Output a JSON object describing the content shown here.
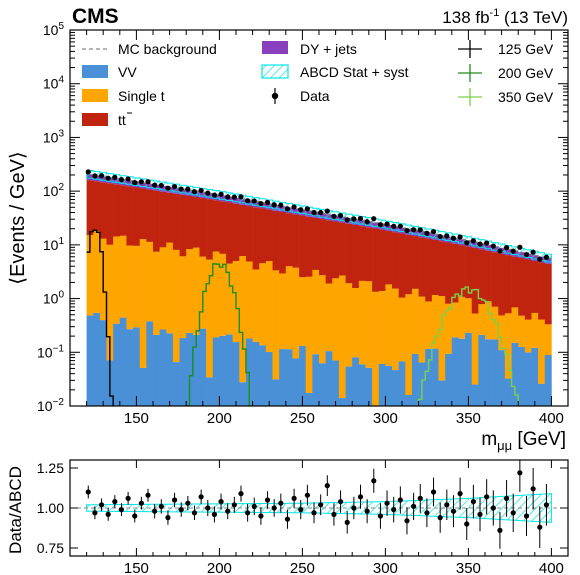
{
  "header": {
    "experiment": "CMS",
    "lumi_prefix": "138 fb",
    "lumi_exp": "-1",
    "lumi_suffix": " (13 TeV)"
  },
  "legend": {
    "mc_background": "MC background",
    "vv": "VV",
    "single_t": "Single t",
    "ttbar": "tt",
    "dy_jets": "DY + jets",
    "abcd": "ABCD Stat + syst",
    "data": "Data",
    "sig125": "125 GeV",
    "sig200": "200 GeV",
    "sig350": "350 GeV"
  },
  "colors": {
    "vv": "#4a90d6",
    "single_t": "#ffa500",
    "ttbar": "#c1240e",
    "dy_jets": "#8a3fbf",
    "abcd": "#00e5e5",
    "sig125": "#000000",
    "sig200": "#1e8c1e",
    "sig350": "#7ccf4a"
  },
  "chart_data": [
    {
      "type": "bar",
      "stacked": true,
      "log_y": true,
      "xlabel": "m",
      "xlabel_sub": "μμ",
      "xlabel_unit": " [GeV]",
      "ylabel": "⟨Events / GeV⟩",
      "xlim": [
        110,
        410
      ],
      "ylim": [
        0.01,
        100000
      ],
      "x_ticks": [
        "150",
        "200",
        "250",
        "300",
        "350",
        "400"
      ],
      "x_tick_values": [
        150,
        200,
        250,
        300,
        350,
        400
      ],
      "y_ticks": [
        {
          "base": "10",
          "exp": "−2",
          "value": 0.01
        },
        {
          "base": "10",
          "exp": "−1",
          "value": 0.1
        },
        {
          "base": "10",
          "exp": "0",
          "value": 1
        },
        {
          "base": "10",
          "exp": "1",
          "value": 10
        },
        {
          "base": "10",
          "exp": "2",
          "value": 100
        },
        {
          "base": "10",
          "exp": "3",
          "value": 1000
        },
        {
          "base": "10",
          "exp": "4",
          "value": 10000
        },
        {
          "base": "10",
          "exp": "5",
          "value": 100000
        }
      ],
      "bin_range": [
        120,
        400
      ],
      "bin_width": 4,
      "totals_at_mass": {
        "x": [
          120,
          150,
          200,
          250,
          300,
          350,
          400
        ],
        "y": [
          210,
          150,
          85,
          45,
          24,
          12,
          5.5
        ]
      },
      "vv_at_mass": {
        "x": [
          120,
          150,
          200,
          250,
          300,
          350,
          400
        ],
        "y": [
          0.5,
          0.3,
          0.2,
          0.1,
          0.05,
          0.2,
          0.1
        ]
      },
      "single_t_at_mass": {
        "x": [
          120,
          150,
          200,
          250,
          300,
          350,
          400
        ],
        "y": [
          15,
          11,
          6,
          3,
          1.5,
          0.7,
          0.3
        ]
      },
      "dy_fraction": 0.22,
      "signals": [
        {
          "name": "125 GeV",
          "mass": 125,
          "peak": 22,
          "width": 2.6
        },
        {
          "name": "200 GeV",
          "mass": 200,
          "peak": 4.5,
          "width": 5.5
        },
        {
          "name": "350 GeV",
          "mass": 350,
          "peak": 1.5,
          "width": 9.5
        }
      ]
    },
    {
      "type": "scatter",
      "ylabel": "Data/ABCD",
      "xlim": [
        110,
        410
      ],
      "ylim": [
        0.7,
        1.3
      ],
      "x_ticks": [
        "150",
        "200",
        "250",
        "300",
        "350",
        "400"
      ],
      "x_tick_values": [
        150,
        200,
        250,
        300,
        350,
        400
      ],
      "y_ticks": [
        "0.75",
        "1.00",
        "1.25"
      ],
      "y_tick_values": [
        0.75,
        1.0,
        1.25
      ],
      "band_half_width_at_mass": {
        "x": [
          120,
          250,
          300,
          350,
          400
        ],
        "y": [
          0.02,
          0.03,
          0.04,
          0.06,
          0.09
        ]
      },
      "ratio_x": [
        121,
        125,
        129,
        133,
        137,
        141,
        145,
        149,
        153,
        157,
        161,
        165,
        169,
        173,
        177,
        181,
        185,
        189,
        193,
        197,
        201,
        205,
        209,
        213,
        217,
        221,
        225,
        229,
        233,
        237,
        241,
        245,
        249,
        253,
        257,
        261,
        265,
        269,
        273,
        277,
        281,
        285,
        289,
        293,
        297,
        301,
        305,
        309,
        313,
        317,
        321,
        325,
        329,
        333,
        337,
        341,
        345,
        349,
        353,
        357,
        361,
        365,
        369,
        373,
        377,
        381,
        385,
        389,
        393,
        397
      ],
      "ratio_y": [
        1.1,
        0.97,
        1.02,
        0.96,
        1.04,
        0.99,
        1.06,
        0.95,
        1.03,
        1.08,
        0.98,
        1.01,
        0.94,
        1.05,
        0.99,
        1.03,
        0.97,
        1.07,
        1.0,
        0.96,
        1.04,
        0.98,
        1.02,
        1.09,
        0.97,
        1.01,
        0.95,
        1.05,
        1.0,
        1.03,
        0.93,
        1.06,
        0.99,
        1.08,
        0.97,
        1.02,
        1.14,
        0.96,
        1.04,
        0.91,
        1.0,
        1.07,
        0.98,
        1.17,
        0.95,
        1.03,
        0.99,
        1.05,
        0.92,
        1.01,
        1.06,
        0.97,
        1.1,
        0.94,
        1.02,
        0.98,
        1.09,
        0.9,
        1.04,
        0.96,
        1.07,
        1.0,
        0.86,
        1.06,
        0.97,
        1.22,
        0.95,
        1.12,
        0.88,
        1.02
      ],
      "ratio_err": [
        0.04,
        0.04,
        0.04,
        0.04,
        0.04,
        0.04,
        0.04,
        0.04,
        0.04,
        0.04,
        0.045,
        0.045,
        0.045,
        0.045,
        0.045,
        0.045,
        0.045,
        0.045,
        0.05,
        0.05,
        0.05,
        0.05,
        0.05,
        0.05,
        0.055,
        0.055,
        0.055,
        0.055,
        0.055,
        0.06,
        0.06,
        0.06,
        0.06,
        0.065,
        0.065,
        0.065,
        0.065,
        0.07,
        0.07,
        0.07,
        0.07,
        0.075,
        0.075,
        0.075,
        0.08,
        0.08,
        0.08,
        0.085,
        0.085,
        0.085,
        0.09,
        0.09,
        0.09,
        0.095,
        0.095,
        0.1,
        0.1,
        0.1,
        0.105,
        0.105,
        0.11,
        0.11,
        0.115,
        0.115,
        0.12,
        0.12,
        0.125,
        0.13,
        0.13,
        0.13
      ]
    }
  ]
}
